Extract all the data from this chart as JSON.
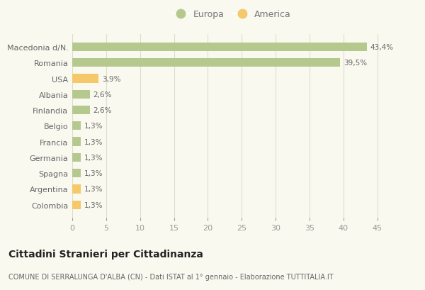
{
  "categories": [
    "Macedonia d/N.",
    "Romania",
    "USA",
    "Albania",
    "Finlandia",
    "Belgio",
    "Francia",
    "Germania",
    "Spagna",
    "Argentina",
    "Colombia"
  ],
  "values": [
    43.4,
    39.5,
    3.9,
    2.6,
    2.6,
    1.3,
    1.3,
    1.3,
    1.3,
    1.3,
    1.3
  ],
  "labels": [
    "43,4%",
    "39,5%",
    "3,9%",
    "2,6%",
    "2,6%",
    "1,3%",
    "1,3%",
    "1,3%",
    "1,3%",
    "1,3%",
    "1,3%"
  ],
  "colors": [
    "#b5c98e",
    "#b5c98e",
    "#f5c869",
    "#b5c98e",
    "#b5c98e",
    "#b5c98e",
    "#b5c98e",
    "#b5c98e",
    "#b5c98e",
    "#f5c869",
    "#f5c869"
  ],
  "europa_color": "#b5c98e",
  "america_color": "#f5c869",
  "background_color": "#f9f9f0",
  "grid_color": "#ddddcc",
  "title": "Cittadini Stranieri per Cittadinanza",
  "subtitle": "COMUNE DI SERRALUNGA D'ALBA (CN) - Dati ISTAT al 1° gennaio - Elaborazione TUTTITALIA.IT",
  "xlim": [
    0,
    47
  ],
  "xticks": [
    0,
    5,
    10,
    15,
    20,
    25,
    30,
    35,
    40,
    45
  ],
  "legend_europa": "Europa",
  "legend_america": "America",
  "bar_height": 0.55
}
